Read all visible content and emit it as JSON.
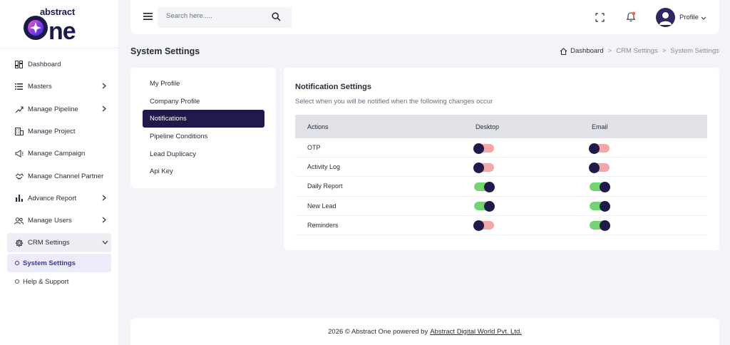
{
  "brand": {
    "line1": "abstract",
    "line2": "One"
  },
  "sidebar": {
    "items": [
      {
        "label": "Dashboard",
        "icon": "dashboard-icon",
        "has_chevron": false
      },
      {
        "label": "Masters",
        "icon": "list-icon",
        "has_chevron": true
      },
      {
        "label": "Manage Pipeline",
        "icon": "pipeline-icon",
        "has_chevron": true
      },
      {
        "label": "Manage Project",
        "icon": "building-icon",
        "has_chevron": false
      },
      {
        "label": "Manage Campaign",
        "icon": "megaphone-icon",
        "has_chevron": false
      },
      {
        "label": "Manage Channel Partner",
        "icon": "handshake-icon",
        "has_chevron": false
      },
      {
        "label": "Advance Report",
        "icon": "bar-chart-icon",
        "has_chevron": true
      },
      {
        "label": "Manage Users",
        "icon": "users-icon",
        "has_chevron": true
      },
      {
        "label": "CRM Settings",
        "icon": "gear-icon",
        "has_chevron": true,
        "expanded": true
      }
    ],
    "sub_items": [
      {
        "label": "System Settings",
        "active": true
      },
      {
        "label": "Help & Support",
        "active": false
      }
    ]
  },
  "topbar": {
    "search_placeholder": "Search here.....",
    "profile_label": "Profile"
  },
  "page": {
    "title": "System Settings",
    "breadcrumb": [
      "Dashboard",
      "CRM Settings",
      "System Settings"
    ]
  },
  "settings_menu": [
    {
      "label": "My Profile",
      "active": false
    },
    {
      "label": "Company Profile",
      "active": false
    },
    {
      "label": "Notifications",
      "active": true
    },
    {
      "label": "Pipeline Conditions",
      "active": false
    },
    {
      "label": "Lead Duplicacy",
      "active": false
    },
    {
      "label": "Api Key",
      "active": false
    }
  ],
  "notifications": {
    "title": "Notification Settings",
    "subtitle": "Select when you will be notified when the following changes occur",
    "columns": [
      "Actions",
      "Desktop",
      "Email"
    ],
    "rows": [
      {
        "action": "OTP",
        "desktop": false,
        "email": false
      },
      {
        "action": "Activity Log",
        "desktop": false,
        "email": false
      },
      {
        "action": "Daily Report",
        "desktop": true,
        "email": true
      },
      {
        "action": "New Lead",
        "desktop": true,
        "email": true
      },
      {
        "action": "Reminders",
        "desktop": false,
        "email": true
      }
    ]
  },
  "footer": {
    "text": "2026 © Abstract One powered by",
    "link": "Abstract Digital World Pvt. Ltd."
  },
  "colors": {
    "primary_dark": "#201a4a",
    "toggle_on": "#74d472",
    "toggle_off": "#f4a7a7",
    "notification_dot": "#f26b3a",
    "background": "#f3f4f7"
  }
}
